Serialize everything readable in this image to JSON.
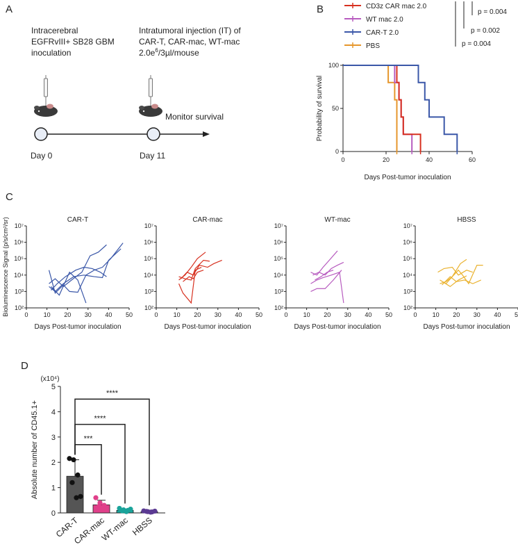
{
  "panels": {
    "a": "A",
    "b": "B",
    "c": "C",
    "d": "D"
  },
  "schematic": {
    "left_lines": [
      "Intracerebral",
      "EGFRvIII+ SB28 GBM",
      "inoculation"
    ],
    "right_lines": [
      "Intratumoral injection (IT) of",
      "CAR-T, CAR-mac, WT-mac"
    ],
    "dose_main": "2.0e",
    "dose_sup": "6",
    "dose_tail": "/3µl/mouse",
    "monitor": "Monitor survival",
    "day0": "Day 0",
    "day11": "Day 11"
  },
  "colors": {
    "cart": "#3a57a8",
    "carmac": "#d7301f",
    "wtmac": "#b75bbf",
    "pbs": "#e6962b",
    "hbss": "#eab22f",
    "bar_cart": "#555555",
    "bar_carmac": "#e0408a",
    "bar_wtmac": "#1aa39a",
    "bar_hbss": "#5b3a92"
  },
  "chart_data": [
    {
      "type": "line",
      "title": "",
      "xlabel": "Days Post-tumor inoculation",
      "ylabel": "Probability of survival",
      "xlim": [
        0,
        60
      ],
      "ylim": [
        0,
        100
      ],
      "xticks": [
        "0",
        "20",
        "40",
        "60"
      ],
      "yticks": [
        "0",
        "50",
        "100"
      ],
      "legend": [
        {
          "label": "CD3z CAR mac 2.0",
          "key": "carmac"
        },
        {
          "label": "WT mac 2.0",
          "key": "wtmac"
        },
        {
          "label": "CAR-T 2.0",
          "key": "cart"
        },
        {
          "label": "PBS",
          "key": "pbs"
        }
      ],
      "pvalues": [
        "p = 0.004",
        "p = 0.002",
        "p = 0.004"
      ],
      "series": [
        {
          "name": "CD3z CAR mac 2.0",
          "key": "carmac",
          "points": [
            [
              0,
              100
            ],
            [
              25,
              100
            ],
            [
              25,
              80
            ],
            [
              26,
              80
            ],
            [
              26,
              60
            ],
            [
              27,
              60
            ],
            [
              27,
              40
            ],
            [
              28,
              40
            ],
            [
              28,
              20
            ],
            [
              36,
              20
            ],
            [
              36,
              0
            ]
          ]
        },
        {
          "name": "WT mac 2.0",
          "key": "wtmac",
          "points": [
            [
              0,
              100
            ],
            [
              24,
              100
            ],
            [
              24,
              80
            ],
            [
              26,
              80
            ],
            [
              26,
              60
            ],
            [
              27,
              60
            ],
            [
              27,
              40
            ],
            [
              28,
              40
            ],
            [
              28,
              20
            ],
            [
              32,
              20
            ],
            [
              32,
              0
            ]
          ]
        },
        {
          "name": "CAR-T 2.0",
          "key": "cart",
          "points": [
            [
              0,
              100
            ],
            [
              35,
              100
            ],
            [
              35,
              80
            ],
            [
              38,
              80
            ],
            [
              38,
              60
            ],
            [
              40,
              60
            ],
            [
              40,
              40
            ],
            [
              47,
              40
            ],
            [
              47,
              20
            ],
            [
              53,
              20
            ],
            [
              53,
              0
            ]
          ]
        },
        {
          "name": "PBS",
          "key": "pbs",
          "points": [
            [
              0,
              100
            ],
            [
              21,
              100
            ],
            [
              21,
              80
            ],
            [
              24,
              80
            ],
            [
              24,
              60
            ],
            [
              25,
              60
            ],
            [
              25,
              0
            ]
          ]
        }
      ]
    },
    {
      "type": "line",
      "title": "CAR-T",
      "xlabel": "Days Post-tumor inoculation",
      "ylabel": "Bioluminescence Signal (p/s/cm²/sr)",
      "yscale": "log",
      "xlim": [
        0,
        50
      ],
      "ylim": [
        100,
        10000000
      ],
      "xticks": [
        "0",
        "10",
        "20",
        "30",
        "40",
        "50"
      ],
      "yticks": [
        "10²",
        "10³",
        "10⁴",
        "10⁵",
        "10⁶",
        "10⁷"
      ],
      "key": "cart",
      "series": [
        {
          "name": "m1",
          "points": [
            [
              11,
              3000
            ],
            [
              14,
              6000
            ],
            [
              18,
              2000
            ],
            [
              22,
              5000
            ],
            [
              27,
              15000
            ],
            [
              31,
              150000
            ],
            [
              35,
              250000
            ],
            [
              39,
              700000
            ]
          ]
        },
        {
          "name": "m2",
          "points": [
            [
              11,
              2000
            ],
            [
              14,
              1000
            ],
            [
              18,
              3000
            ],
            [
              23,
              8000
            ],
            [
              28,
              10000
            ],
            [
              33,
              8000
            ],
            [
              37,
              7000
            ],
            [
              40,
              80000
            ],
            [
              46,
              400000
            ]
          ]
        },
        {
          "name": "m3",
          "points": [
            [
              11,
              20000
            ],
            [
              14,
              800
            ],
            [
              18,
              2500
            ],
            [
              21,
              1000
            ],
            [
              25,
              900
            ],
            [
              29,
              10000
            ],
            [
              33,
              20000
            ],
            [
              37,
              30000
            ],
            [
              41,
              100000
            ],
            [
              47,
              900000
            ]
          ]
        },
        {
          "name": "m4",
          "points": [
            [
              12,
              2000
            ],
            [
              16,
              600
            ],
            [
              21,
              15000
            ],
            [
              25,
              5000
            ],
            [
              29,
              200
            ]
          ]
        },
        {
          "name": "m5",
          "points": [
            [
              12,
              1200
            ],
            [
              15,
              3000
            ],
            [
              19,
              8000
            ],
            [
              24,
              20000
            ],
            [
              28,
              30000
            ],
            [
              32,
              25000
            ],
            [
              36,
              15000
            ],
            [
              39,
              8000
            ]
          ]
        }
      ]
    },
    {
      "type": "line",
      "title": "CAR-mac",
      "xlabel": "Days Post-tumor inoculation",
      "yscale": "log",
      "xlim": [
        0,
        50
      ],
      "ylim": [
        100,
        10000000
      ],
      "xticks": [
        "0",
        "10",
        "20",
        "30",
        "40",
        "50"
      ],
      "yticks": [
        "10²",
        "10³",
        "10⁴",
        "10⁵",
        "10⁶",
        "10⁷"
      ],
      "key": "carmac",
      "series": [
        {
          "name": "m1",
          "points": [
            [
              11,
              5000
            ],
            [
              14,
              10000
            ],
            [
              17,
              30000
            ],
            [
              20,
              100000
            ],
            [
              24,
              250000
            ]
          ]
        },
        {
          "name": "m2",
          "points": [
            [
              11,
              8000
            ],
            [
              14,
              6000
            ],
            [
              17,
              5000
            ],
            [
              19,
              25000
            ],
            [
              23,
              80000
            ],
            [
              26,
              70000
            ]
          ]
        },
        {
          "name": "m3",
          "points": [
            [
              11,
              3000
            ],
            [
              13,
              800
            ],
            [
              17,
              200
            ],
            [
              19,
              20000
            ],
            [
              22,
              30000
            ]
          ]
        },
        {
          "name": "m4",
          "points": [
            [
              12,
              6000
            ],
            [
              15,
              15000
            ],
            [
              18,
              10000
            ],
            [
              21,
              40000
            ],
            [
              25,
              30000
            ],
            [
              28,
              50000
            ],
            [
              32,
              80000
            ]
          ]
        },
        {
          "name": "m5",
          "points": [
            [
              13,
              4000
            ],
            [
              16,
              8000
            ],
            [
              18,
              6000
            ],
            [
              20,
              15000
            ],
            [
              23,
              20000
            ]
          ]
        }
      ]
    },
    {
      "type": "line",
      "title": "WT-mac",
      "xlabel": "Days Post-tumor inoculation",
      "yscale": "log",
      "xlim": [
        0,
        50
      ],
      "ylim": [
        100,
        10000000
      ],
      "xticks": [
        "0",
        "10",
        "20",
        "30",
        "40",
        "50"
      ],
      "yticks": [
        "10²",
        "10³",
        "10⁴",
        "10⁵",
        "10⁶",
        "10⁷"
      ],
      "key": "wtmac",
      "series": [
        {
          "name": "m1",
          "points": [
            [
              12,
              15000
            ],
            [
              15,
              10000
            ],
            [
              18,
              30000
            ],
            [
              21,
              80000
            ],
            [
              25,
              300000
            ]
          ]
        },
        {
          "name": "m2",
          "points": [
            [
              12,
              3000
            ],
            [
              15,
              5000
            ],
            [
              18,
              7000
            ],
            [
              22,
              10000
            ],
            [
              26,
              15000
            ],
            [
              28,
              200
            ]
          ]
        },
        {
          "name": "m3",
          "points": [
            [
              12,
              1000
            ],
            [
              15,
              1500
            ],
            [
              19,
              1500
            ],
            [
              23,
              5000
            ],
            [
              27,
              20000
            ]
          ]
        },
        {
          "name": "m4",
          "points": [
            [
              13,
              10000
            ],
            [
              16,
              15000
            ],
            [
              19,
              10000
            ],
            [
              22,
              25000
            ],
            [
              25,
              40000
            ],
            [
              28,
              60000
            ]
          ]
        },
        {
          "name": "m5",
          "points": [
            [
              14,
              5000
            ],
            [
              17,
              8000
            ],
            [
              20,
              15000
            ],
            [
              23,
              20000
            ]
          ]
        }
      ]
    },
    {
      "type": "line",
      "title": "HBSS",
      "xlabel": "Days Post-tumor inoculation",
      "yscale": "log",
      "xlim": [
        0,
        50
      ],
      "ylim": [
        100,
        10000000
      ],
      "xticks": [
        "0",
        "10",
        "20",
        "30",
        "40",
        "50"
      ],
      "yticks": [
        "10²",
        "10³",
        "10⁴",
        "10⁵",
        "10⁶",
        "10⁷"
      ],
      "key": "hbss",
      "series": [
        {
          "name": "m1",
          "points": [
            [
              11,
              15000
            ],
            [
              14,
              25000
            ],
            [
              18,
              30000
            ],
            [
              21,
              10000
            ],
            [
              25,
              20000
            ],
            [
              28,
              15000
            ]
          ]
        },
        {
          "name": "m2",
          "points": [
            [
              12,
              3000
            ],
            [
              15,
              4000
            ],
            [
              18,
              8000
            ],
            [
              22,
              50000
            ],
            [
              25,
              90000
            ]
          ]
        },
        {
          "name": "m3",
          "points": [
            [
              12,
              5000
            ],
            [
              15,
              3000
            ],
            [
              18,
              8000
            ],
            [
              21,
              20000
            ],
            [
              23,
              10000
            ],
            [
              26,
              3000
            ],
            [
              30,
              40000
            ],
            [
              33,
              40000
            ]
          ]
        },
        {
          "name": "m4",
          "points": [
            [
              13,
              2500
            ],
            [
              17,
              8000
            ],
            [
              20,
              4000
            ],
            [
              24,
              5000
            ],
            [
              28,
              3000
            ],
            [
              32,
              5000
            ]
          ]
        },
        {
          "name": "m5",
          "points": [
            [
              14,
              3500
            ],
            [
              17,
              2000
            ],
            [
              21,
              5000
            ],
            [
              25,
              9000
            ]
          ]
        }
      ]
    },
    {
      "type": "bar",
      "title": "",
      "ylabel": "Absolute number of CD45.1+",
      "yunit": "(x10⁴)",
      "xlabel": "",
      "ylim": [
        0,
        5
      ],
      "yticks": [
        "0",
        "1",
        "2",
        "3",
        "4",
        "5"
      ],
      "categories": [
        "CAR-T",
        "CAR-mac",
        "WT-mac",
        "HBSS"
      ],
      "values": [
        1.45,
        0.32,
        0.1,
        0.05
      ],
      "errors": [
        0.65,
        0.18,
        0.05,
        0.03
      ],
      "keys": [
        "bar_cart",
        "bar_carmac",
        "bar_wtmac",
        "bar_hbss"
      ],
      "points": [
        [
          2.15,
          2.1,
          1.5,
          1.2,
          0.6,
          0.65
        ],
        [
          0.6,
          0.4,
          0.3,
          0.25,
          0.2,
          0.2
        ],
        [
          0.18,
          0.12,
          0.1,
          0.08,
          0.05,
          0.15
        ],
        [
          0.08,
          0.05,
          0.04,
          0.06,
          0.03,
          0.07
        ]
      ],
      "significance": [
        {
          "from": 0,
          "to": 1,
          "label": "***"
        },
        {
          "from": 0,
          "to": 2,
          "label": "****"
        },
        {
          "from": 0,
          "to": 3,
          "label": "****"
        }
      ]
    }
  ]
}
